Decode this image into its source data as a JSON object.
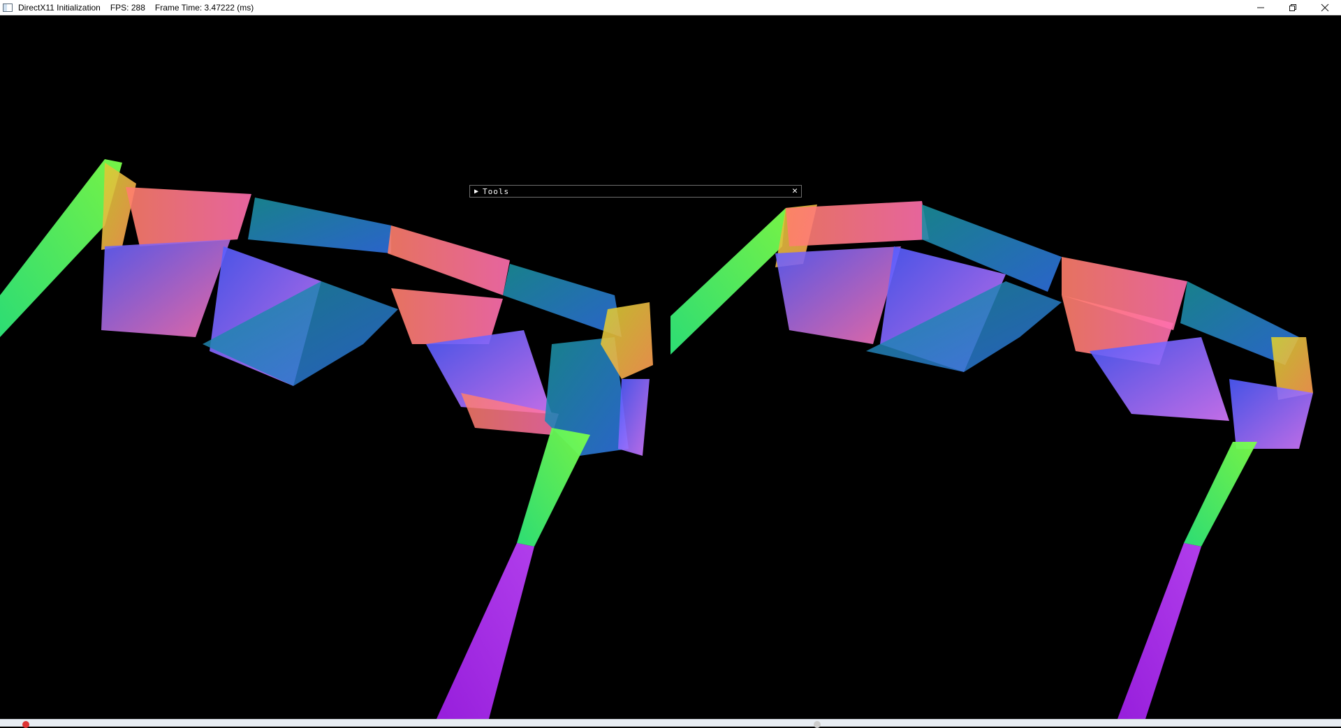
{
  "window": {
    "title": "DirectX11 Initialization",
    "fps_label": "FPS: 288",
    "frame_time_label": "Frame Time: 3.47222 (ms)",
    "controls": {
      "minimize_icon": "minimize-icon",
      "restore_icon": "restore-icon",
      "close_icon": "close-icon"
    }
  },
  "tools_panel": {
    "label": "Tools",
    "collapse_icon": "triangle-right-icon",
    "close_icon": "close-icon",
    "collapsed": true
  },
  "scene": {
    "background": "#000000",
    "views": [
      "left-view",
      "right-view"
    ],
    "colors": {
      "green": "#46f07a",
      "lime": "#7cff4a",
      "salmon": "#ff8a70",
      "pink": "#ff6fb0",
      "teal": "#1fa3a8",
      "blue": "#5563ff",
      "violet": "#c06bff",
      "purple": "#a21fe0",
      "yellow": "#d6d030",
      "orange": "#ff9a55"
    }
  },
  "taskbar": {
    "accent": "#e8edf3"
  }
}
